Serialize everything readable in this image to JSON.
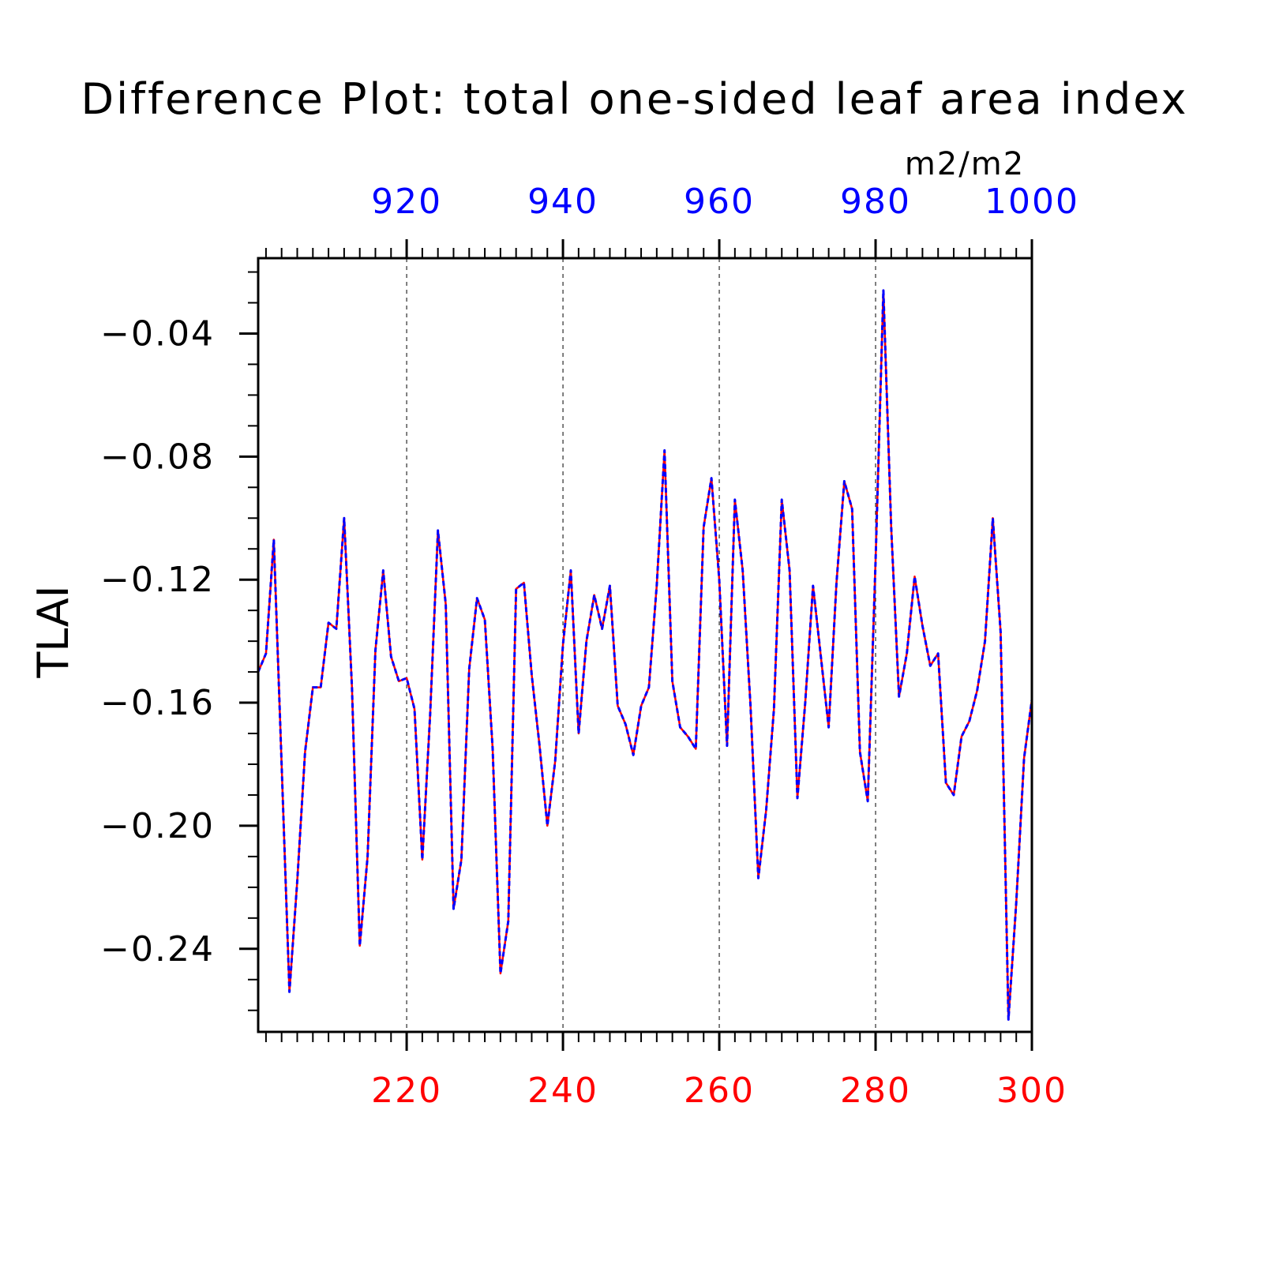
{
  "chart_data": {
    "type": "line",
    "title": "Difference Plot: total one-sided leaf area index",
    "units": "m2/m2",
    "ylabel": "TLAI",
    "xlabel": "",
    "ylim": [
      -0.267,
      -0.0155
    ],
    "y_ticks": [
      "−0.04",
      "−0.08",
      "−0.12",
      "−0.16",
      "−0.20",
      "−0.24"
    ],
    "y_tick_values": [
      -0.04,
      -0.08,
      -0.12,
      -0.16,
      -0.2,
      -0.24
    ],
    "grid_x": true,
    "grid_y": false,
    "bottom_axis": {
      "range": [
        201,
        300
      ],
      "ticks": [
        "220",
        "240",
        "260",
        "280",
        "300"
      ],
      "tick_values": [
        220,
        240,
        260,
        280,
        300
      ],
      "color": "#ff0000"
    },
    "top_axis": {
      "range": [
        901,
        1000
      ],
      "ticks": [
        "920",
        "940",
        "960",
        "980",
        "1000"
      ],
      "tick_values": [
        920,
        940,
        960,
        980,
        1000
      ],
      "color": "#0000ff"
    },
    "x": [
      201,
      202,
      203,
      204,
      205,
      206,
      207,
      208,
      209,
      210,
      211,
      212,
      213,
      214,
      215,
      216,
      217,
      218,
      219,
      220,
      221,
      222,
      223,
      224,
      225,
      226,
      227,
      228,
      229,
      230,
      231,
      232,
      233,
      234,
      235,
      236,
      237,
      238,
      239,
      240,
      241,
      242,
      243,
      244,
      245,
      246,
      247,
      248,
      249,
      250,
      251,
      252,
      253,
      254,
      255,
      256,
      257,
      258,
      259,
      260,
      261,
      262,
      263,
      264,
      265,
      266,
      267,
      268,
      269,
      270,
      271,
      272,
      273,
      274,
      275,
      276,
      277,
      278,
      279,
      280,
      281,
      282,
      283,
      284,
      285,
      286,
      287,
      288,
      289,
      290,
      291,
      292,
      293,
      294,
      295,
      296,
      297,
      298,
      299,
      300
    ],
    "series": [
      {
        "color": "#ff0000",
        "style": "solid",
        "values": [
          -0.15,
          -0.144,
          -0.107,
          -0.18,
          -0.254,
          -0.218,
          -0.176,
          -0.155,
          -0.155,
          -0.134,
          -0.136,
          -0.1,
          -0.155,
          -0.239,
          -0.21,
          -0.143,
          -0.117,
          -0.145,
          -0.153,
          -0.152,
          -0.162,
          -0.211,
          -0.164,
          -0.104,
          -0.128,
          -0.227,
          -0.211,
          -0.149,
          -0.126,
          -0.133,
          -0.175,
          -0.248,
          -0.231,
          -0.123,
          -0.121,
          -0.151,
          -0.174,
          -0.2,
          -0.179,
          -0.141,
          -0.117,
          -0.17,
          -0.14,
          -0.125,
          -0.136,
          -0.122,
          -0.161,
          -0.167,
          -0.177,
          -0.161,
          -0.155,
          -0.122,
          -0.078,
          -0.153,
          -0.168,
          -0.171,
          -0.175,
          -0.103,
          -0.087,
          -0.12,
          -0.174,
          -0.094,
          -0.117,
          -0.161,
          -0.217,
          -0.195,
          -0.162,
          -0.094,
          -0.117,
          -0.191,
          -0.16,
          -0.122,
          -0.145,
          -0.168,
          -0.121,
          -0.088,
          -0.097,
          -0.176,
          -0.192,
          -0.114,
          -0.026,
          -0.103,
          -0.158,
          -0.144,
          -0.119,
          -0.135,
          -0.148,
          -0.144,
          -0.186,
          -0.19,
          -0.171,
          -0.166,
          -0.156,
          -0.14,
          -0.1,
          -0.137,
          -0.263,
          -0.225,
          -0.178,
          -0.159
        ]
      },
      {
        "color": "#0000ff",
        "style": "dashed",
        "values": [
          -0.15,
          -0.144,
          -0.107,
          -0.18,
          -0.254,
          -0.218,
          -0.176,
          -0.155,
          -0.155,
          -0.134,
          -0.136,
          -0.1,
          -0.155,
          -0.239,
          -0.21,
          -0.143,
          -0.117,
          -0.145,
          -0.153,
          -0.152,
          -0.162,
          -0.211,
          -0.164,
          -0.104,
          -0.128,
          -0.227,
          -0.211,
          -0.149,
          -0.126,
          -0.133,
          -0.175,
          -0.248,
          -0.231,
          -0.123,
          -0.121,
          -0.151,
          -0.174,
          -0.2,
          -0.179,
          -0.141,
          -0.117,
          -0.17,
          -0.14,
          -0.125,
          -0.136,
          -0.122,
          -0.161,
          -0.167,
          -0.177,
          -0.161,
          -0.155,
          -0.122,
          -0.078,
          -0.153,
          -0.168,
          -0.171,
          -0.175,
          -0.103,
          -0.087,
          -0.12,
          -0.174,
          -0.094,
          -0.117,
          -0.161,
          -0.217,
          -0.195,
          -0.162,
          -0.094,
          -0.117,
          -0.191,
          -0.16,
          -0.122,
          -0.145,
          -0.168,
          -0.121,
          -0.088,
          -0.097,
          -0.176,
          -0.192,
          -0.114,
          -0.026,
          -0.103,
          -0.158,
          -0.144,
          -0.119,
          -0.135,
          -0.148,
          -0.144,
          -0.186,
          -0.19,
          -0.171,
          -0.166,
          -0.156,
          -0.14,
          -0.1,
          -0.137,
          -0.263,
          -0.225,
          -0.178,
          -0.159
        ]
      }
    ]
  }
}
